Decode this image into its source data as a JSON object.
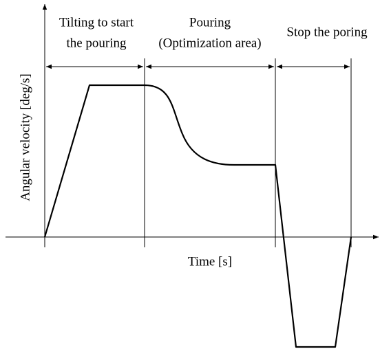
{
  "phases": [
    {
      "label": [
        "Tilting to start",
        "the pouring"
      ]
    },
    {
      "label": [
        "Pouring",
        "(Optimization area)"
      ]
    },
    {
      "label": [
        "Stop the poring"
      ]
    }
  ],
  "y_axis_label": "Angular velocity [deg/s]",
  "x_axis_label": "Time [s]"
}
